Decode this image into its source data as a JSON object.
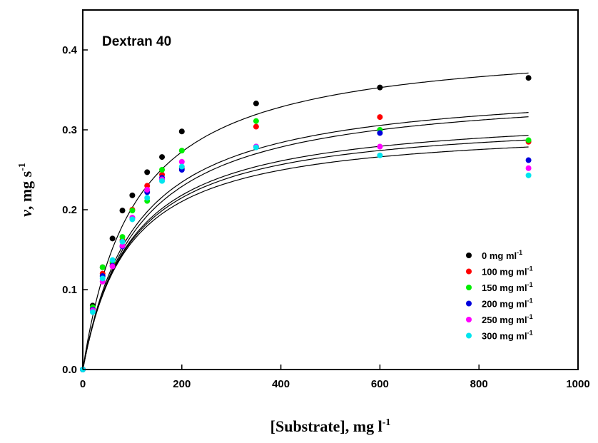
{
  "chart_data": {
    "type": "scatter",
    "title": "Dextran 40",
    "xlabel": {
      "main": "[Substrate], mg l",
      "sup": "-1"
    },
    "ylabel": {
      "italic": "v",
      "main": ", mg s",
      "sup": "-1"
    },
    "xlim": [
      0,
      1000
    ],
    "ylim": [
      0,
      0.45
    ],
    "xticks": [
      0,
      200,
      400,
      600,
      800,
      1000
    ],
    "yticks": [
      0.0,
      0.1,
      0.2,
      0.3,
      0.4
    ],
    "xtick_labels": [
      "0",
      "200",
      "400",
      "600",
      "800",
      "1000"
    ],
    "ytick_labels": [
      "0.0",
      "0.1",
      "0.2",
      "0.3",
      "0.4"
    ],
    "grid": false,
    "legend_position": "lower-right",
    "x": [
      0,
      20,
      40,
      60,
      80,
      100,
      130,
      160,
      200,
      350,
      600,
      900
    ],
    "series": [
      {
        "name": "0 mg ml",
        "name_sup": "-1",
        "color": "#000000",
        "values": [
          0.0,
          0.08,
          0.128,
          0.164,
          0.199,
          0.218,
          0.247,
          0.266,
          0.298,
          0.333,
          0.353,
          0.365
        ],
        "fit": {
          "vmax": 0.414,
          "km": 104
        }
      },
      {
        "name": "100 mg ml",
        "name_sup": "-1",
        "color": "#ff0000",
        "values": [
          0.0,
          0.076,
          0.12,
          0.133,
          0.162,
          0.2,
          0.23,
          0.244,
          0.252,
          0.304,
          0.316,
          0.285
        ],
        "fit": {
          "vmax": 0.36,
          "km": 107
        }
      },
      {
        "name": "150 mg ml",
        "name_sup": "-1",
        "color": "#00ee00",
        "values": [
          0.0,
          0.078,
          0.128,
          0.135,
          0.166,
          0.199,
          0.211,
          0.25,
          0.274,
          0.311,
          0.3,
          0.287
        ],
        "fit": {
          "vmax": 0.355,
          "km": 110
        }
      },
      {
        "name": "200 mg ml",
        "name_sup": "-1",
        "color": "#0000dd",
        "values": [
          0.0,
          0.075,
          0.117,
          0.13,
          0.154,
          0.19,
          0.222,
          0.24,
          0.25,
          0.279,
          0.296,
          0.262
        ],
        "fit": {
          "vmax": 0.325,
          "km": 98
        }
      },
      {
        "name": "250 mg ml",
        "name_sup": "-1",
        "color": "#ff00ff",
        "values": [
          0.0,
          0.074,
          0.11,
          0.129,
          0.155,
          0.19,
          0.225,
          0.238,
          0.26,
          0.279,
          0.279,
          0.252
        ],
        "fit": {
          "vmax": 0.318,
          "km": 96
        }
      },
      {
        "name": "300 mg ml",
        "name_sup": "-1",
        "color": "#00e5ee",
        "values": [
          0.0,
          0.072,
          0.114,
          0.137,
          0.16,
          0.188,
          0.215,
          0.236,
          0.254,
          0.278,
          0.268,
          0.243
        ],
        "fit": {
          "vmax": 0.307,
          "km": 92
        }
      }
    ]
  }
}
